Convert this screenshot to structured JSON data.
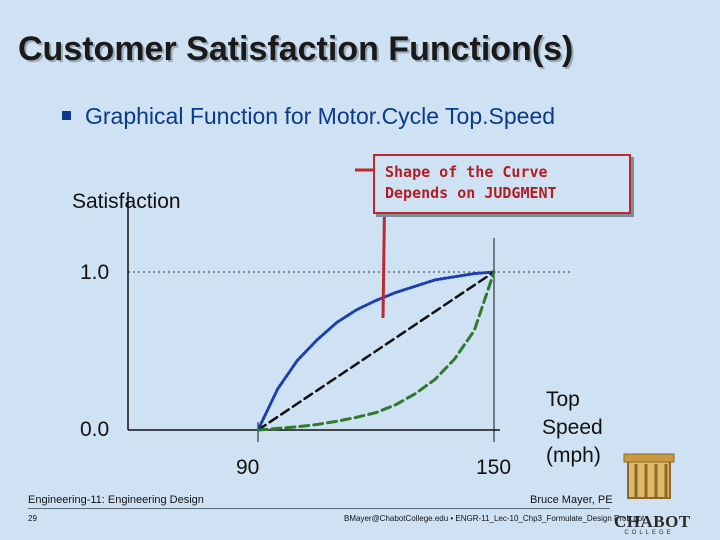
{
  "slide": {
    "title": "Customer Satisfaction Function(s)",
    "bullet": "Graphical Function for Motor.Cycle Top.Speed",
    "callout": {
      "line1": "Shape of the Curve",
      "line2": "Depends on JUDGMENT",
      "color": "#b21d24"
    },
    "footer": {
      "course": "Engineering-11: Engineering Design",
      "page_number": "29",
      "author": "Bruce Mayer, PE",
      "url": "BMayer@ChabotCollege.edu • ENGR-11_Lec-10_Chp3_Formulate_Design Prob.ppt",
      "logo_text": "CHABOT",
      "logo_subtext": "COLLEGE"
    }
  },
  "chart_data": {
    "type": "line",
    "ylabel": "Satisfaction",
    "xlabel_lines": [
      "Top",
      "Speed",
      "(mph)"
    ],
    "x_ticks": [
      "90",
      "150"
    ],
    "y_ticks": [
      "0.0",
      "1.0"
    ],
    "xlim": [
      90,
      150
    ],
    "ylim": [
      0.0,
      1.0
    ],
    "series": [
      {
        "style": "blue-dotted-concave",
        "color": "#1c3fb0",
        "x": [
          90,
          95,
          100,
          105,
          110,
          115,
          120,
          125,
          130,
          135,
          140,
          145,
          150
        ],
        "y": [
          0.0,
          0.26,
          0.44,
          0.57,
          0.68,
          0.76,
          0.82,
          0.87,
          0.91,
          0.95,
          0.97,
          0.99,
          1.0
        ]
      },
      {
        "style": "black-dashed-linear",
        "color": "#111111",
        "x": [
          90,
          150
        ],
        "y": [
          0.0,
          1.0
        ]
      },
      {
        "style": "green-dashed-convex",
        "color": "#2f7a2f",
        "x": [
          90,
          95,
          100,
          105,
          110,
          115,
          120,
          125,
          130,
          135,
          140,
          145,
          150
        ],
        "y": [
          0.0,
          0.01,
          0.02,
          0.035,
          0.055,
          0.08,
          0.11,
          0.16,
          0.23,
          0.32,
          0.45,
          0.63,
          1.0
        ]
      }
    ]
  }
}
